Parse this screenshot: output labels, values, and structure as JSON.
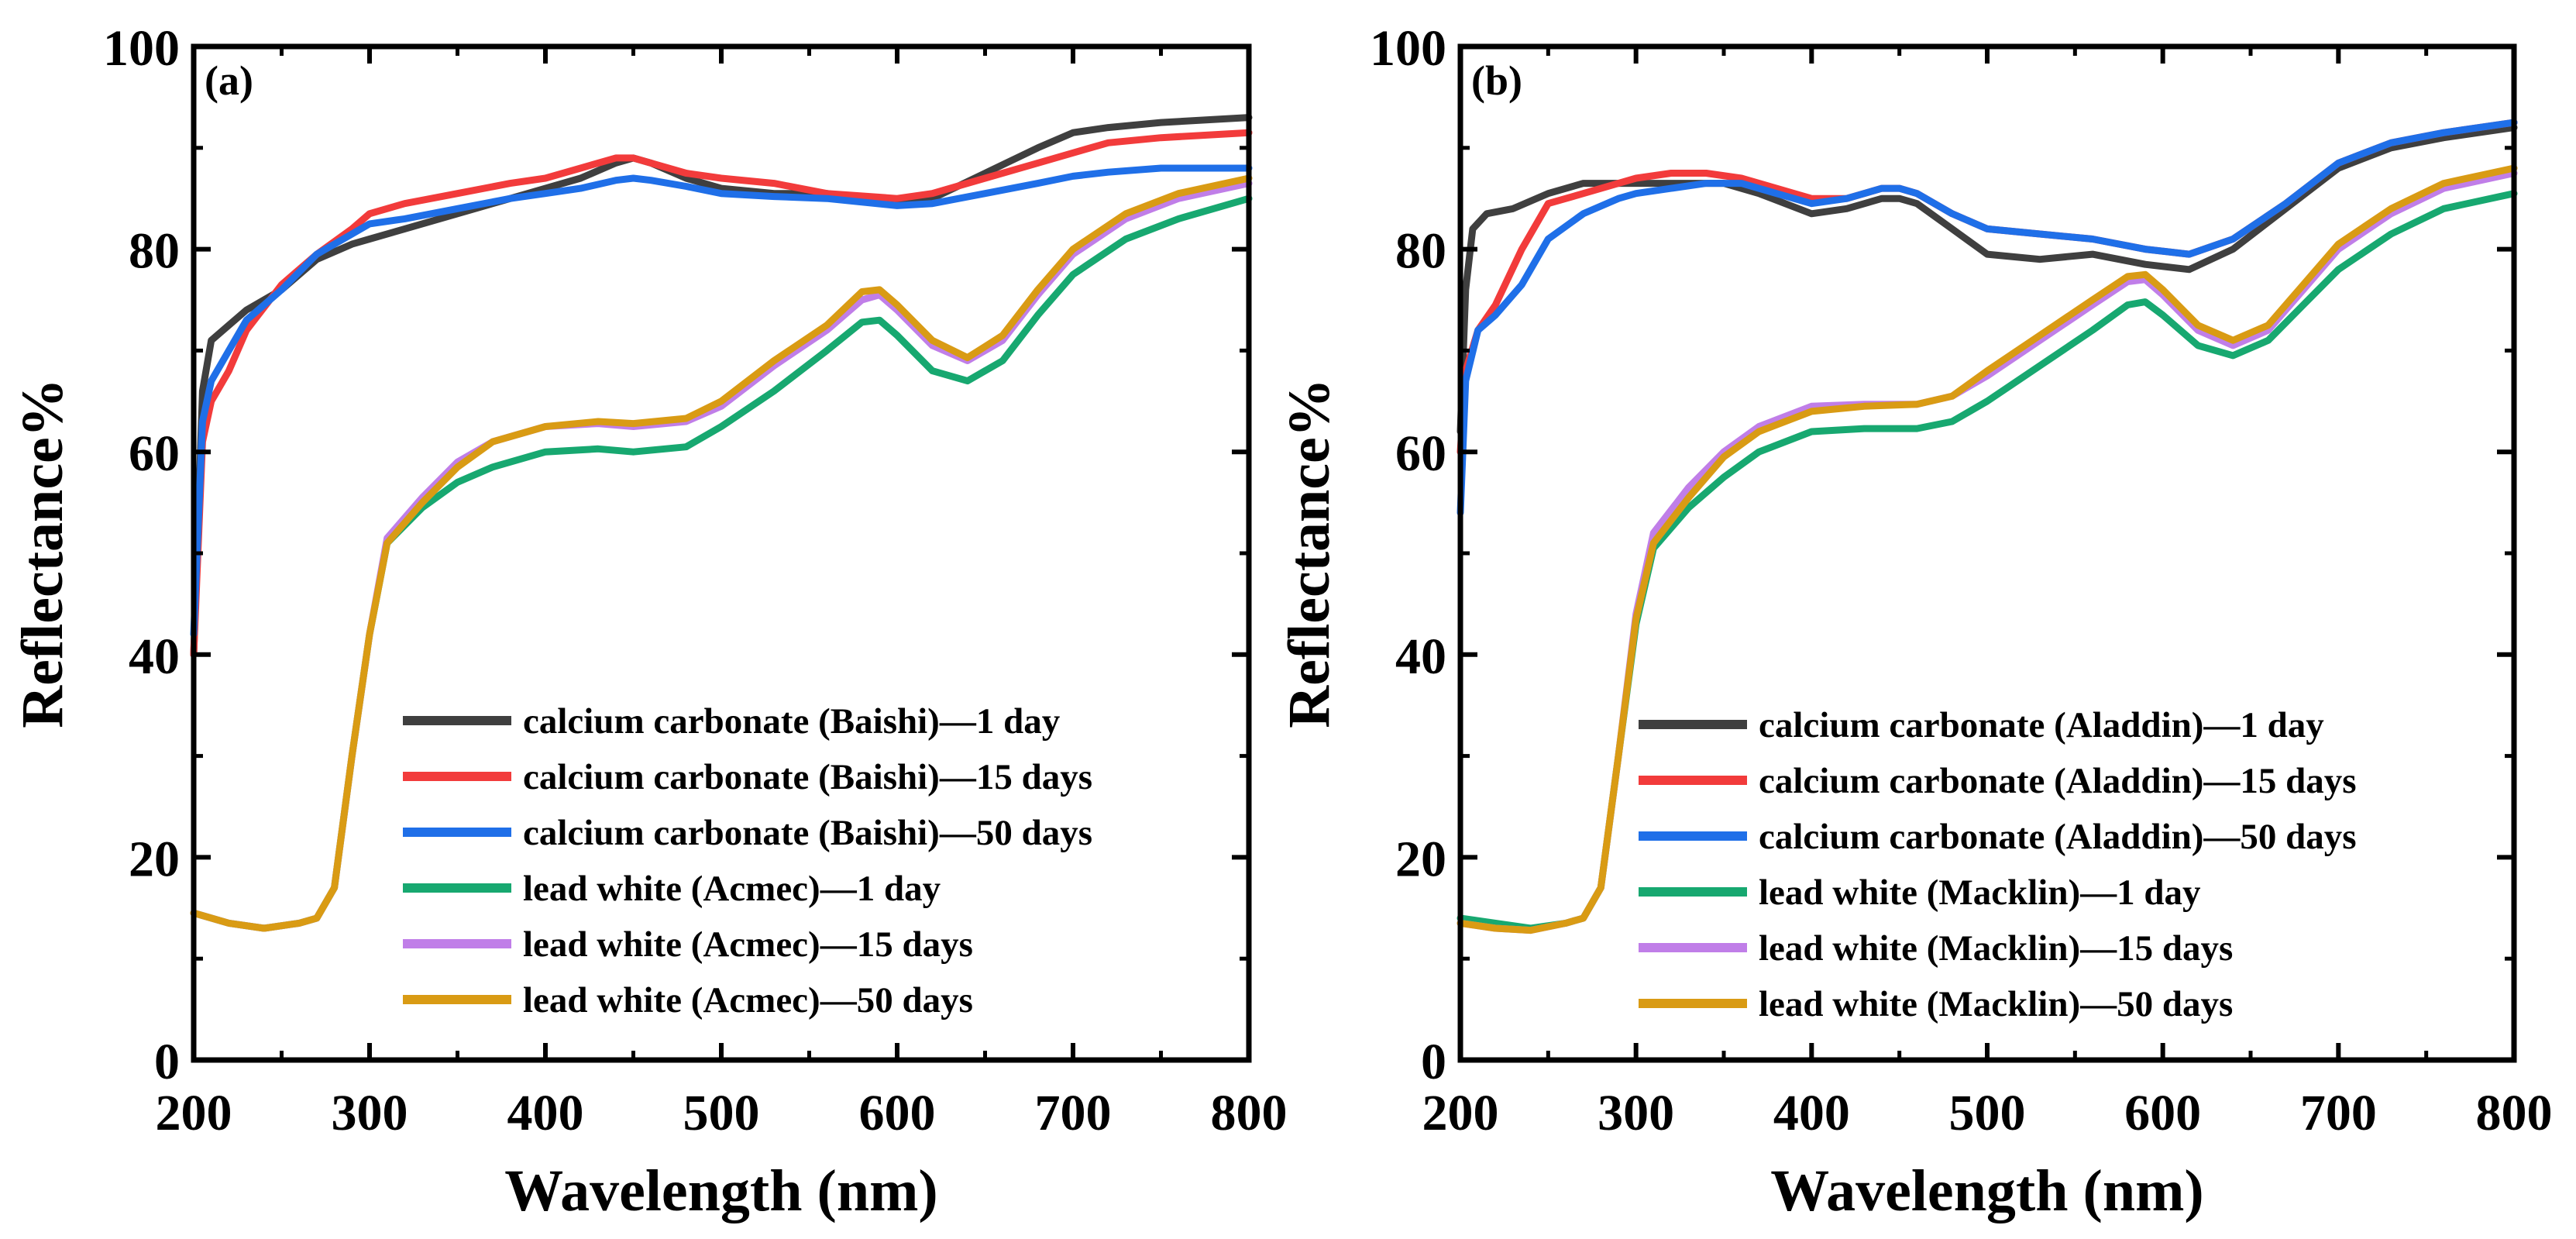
{
  "chart_data": [
    {
      "type": "line",
      "panel_label": "(a)",
      "xlabel": "Wavelength (nm)",
      "ylabel": "Reflectance%",
      "xlim": [
        200,
        800
      ],
      "ylim": [
        0,
        100
      ],
      "xticks": [
        "200",
        "300",
        "400",
        "500",
        "600",
        "700",
        "800"
      ],
      "yticks": [
        "0",
        "20",
        "40",
        "60",
        "80",
        "100"
      ],
      "legend_position": "lower-right",
      "series": [
        {
          "name": "calcium carbonate (Baishi)—1 day",
          "color": "#3f3f3f",
          "x": [
            200,
            205,
            210,
            220,
            230,
            250,
            270,
            290,
            300,
            320,
            350,
            380,
            400,
            420,
            440,
            450,
            460,
            480,
            500,
            530,
            560,
            600,
            620,
            650,
            680,
            700,
            720,
            750,
            800
          ],
          "y": [
            40,
            66,
            71,
            72.5,
            74,
            76,
            79,
            80.5,
            81,
            82,
            83.5,
            85,
            86,
            87,
            88.5,
            89,
            88.5,
            87,
            86,
            85.5,
            85.5,
            84.5,
            85,
            87.5,
            90,
            91.5,
            92,
            92.5,
            93
          ]
        },
        {
          "name": "calcium carbonate (Baishi)—15 days",
          "color": "#f23b3b",
          "x": [
            200,
            205,
            210,
            220,
            230,
            250,
            270,
            290,
            300,
            320,
            350,
            380,
            400,
            420,
            440,
            450,
            460,
            480,
            500,
            530,
            560,
            600,
            620,
            650,
            680,
            700,
            720,
            750,
            800
          ],
          "y": [
            40,
            61,
            65,
            68,
            72,
            76.5,
            79.5,
            82,
            83.5,
            84.5,
            85.5,
            86.5,
            87,
            88,
            89,
            89,
            88.5,
            87.5,
            87,
            86.5,
            85.5,
            85,
            85.5,
            87,
            88.5,
            89.5,
            90.5,
            91,
            91.5
          ]
        },
        {
          "name": "calcium carbonate (Baishi)—50 days",
          "color": "#1f6fe8",
          "x": [
            200,
            205,
            210,
            220,
            230,
            250,
            270,
            290,
            300,
            320,
            350,
            380,
            400,
            420,
            440,
            450,
            460,
            480,
            500,
            530,
            560,
            600,
            620,
            650,
            680,
            700,
            720,
            750,
            800
          ],
          "y": [
            42,
            63,
            67,
            70,
            73,
            76,
            79.5,
            81.5,
            82.5,
            83,
            84,
            85,
            85.5,
            86,
            86.8,
            87,
            86.8,
            86.2,
            85.5,
            85.2,
            85,
            84.3,
            84.5,
            85.5,
            86.5,
            87.2,
            87.6,
            88,
            88
          ]
        },
        {
          "name": "lead white (Acmec)—1 day",
          "color": "#17a870",
          "x": [
            200,
            220,
            240,
            260,
            270,
            280,
            290,
            300,
            310,
            330,
            350,
            370,
            400,
            430,
            450,
            480,
            500,
            530,
            560,
            580,
            590,
            600,
            620,
            640,
            660,
            680,
            700,
            730,
            760,
            800
          ],
          "y": [
            14.5,
            13.5,
            13,
            13.5,
            14,
            17,
            30,
            42,
            51,
            54.5,
            57,
            58.5,
            60,
            60.3,
            60,
            60.5,
            62.5,
            66,
            70,
            72.8,
            73,
            71.5,
            68,
            67,
            69,
            73.5,
            77.5,
            81,
            83,
            85
          ]
        },
        {
          "name": "lead white (Acmec)—15 days",
          "color": "#c07ee8",
          "x": [
            200,
            220,
            240,
            260,
            270,
            280,
            290,
            300,
            310,
            330,
            350,
            370,
            400,
            430,
            450,
            480,
            500,
            530,
            560,
            580,
            590,
            600,
            620,
            640,
            660,
            680,
            700,
            730,
            760,
            800
          ],
          "y": [
            14.5,
            13.5,
            13,
            13.5,
            14,
            17,
            30,
            42,
            51.5,
            55.5,
            59,
            61,
            62.5,
            62.8,
            62.5,
            63,
            64.5,
            68.5,
            72,
            75,
            75.5,
            74,
            70.5,
            69,
            71,
            75.5,
            79.5,
            83,
            85,
            86.5
          ]
        },
        {
          "name": "lead white (Acmec)—50 days",
          "color": "#d99b14",
          "x": [
            200,
            220,
            240,
            260,
            270,
            280,
            290,
            300,
            310,
            330,
            350,
            370,
            400,
            430,
            450,
            480,
            500,
            530,
            560,
            580,
            590,
            600,
            620,
            640,
            660,
            680,
            700,
            730,
            760,
            800
          ],
          "y": [
            14.5,
            13.5,
            13,
            13.5,
            14,
            17,
            30,
            42,
            51,
            55,
            58.5,
            61,
            62.5,
            63,
            62.8,
            63.3,
            65,
            69,
            72.5,
            75.8,
            76,
            74.5,
            71,
            69.3,
            71.5,
            76,
            80,
            83.5,
            85.5,
            87
          ]
        }
      ]
    },
    {
      "type": "line",
      "panel_label": "(b)",
      "xlabel": "Wavelength (nm)",
      "ylabel": "Reflectance%",
      "xlim": [
        200,
        800
      ],
      "ylim": [
        0,
        100
      ],
      "xticks": [
        "200",
        "300",
        "400",
        "500",
        "600",
        "700",
        "800"
      ],
      "yticks": [
        "0",
        "20",
        "40",
        "60",
        "80",
        "100"
      ],
      "legend_position": "lower-right",
      "series": [
        {
          "name": "calcium carbonate (Aladdin)—1 day",
          "color": "#3f3f3f",
          "x": [
            200,
            203,
            207,
            215,
            230,
            250,
            270,
            285,
            300,
            330,
            350,
            370,
            400,
            420,
            440,
            450,
            460,
            480,
            500,
            530,
            560,
            590,
            615,
            640,
            670,
            700,
            730,
            760,
            800
          ],
          "y": [
            62,
            76,
            82,
            83.5,
            84,
            85.5,
            86.5,
            86.5,
            86.5,
            86.5,
            86.5,
            85.5,
            83.5,
            84,
            85,
            85,
            84.5,
            82,
            79.5,
            79,
            79.5,
            78.5,
            78,
            80,
            84,
            88,
            90,
            91,
            92
          ]
        },
        {
          "name": "calcium carbonate (Aladdin)—15 days",
          "color": "#f23b3b",
          "x": [
            200,
            203,
            210,
            220,
            235,
            250,
            270,
            290,
            300,
            320,
            340,
            360,
            380,
            400,
            420,
            440,
            450,
            460,
            480,
            500,
            530,
            560,
            590,
            615,
            640,
            670,
            700,
            730,
            760,
            800
          ],
          "y": [
            60,
            68,
            72,
            74.5,
            80,
            84.5,
            85.5,
            86.5,
            87,
            87.5,
            87.5,
            87,
            86,
            85,
            85,
            86,
            86,
            85.5,
            83.5,
            82,
            81.5,
            81,
            80,
            79.5,
            81,
            84.5,
            88.5,
            90.5,
            91.5,
            92.5
          ]
        },
        {
          "name": "calcium carbonate (Aladdin)—50 days",
          "color": "#1f6fe8",
          "x": [
            200,
            203,
            210,
            220,
            235,
            250,
            270,
            290,
            300,
            320,
            340,
            360,
            380,
            400,
            420,
            440,
            450,
            460,
            480,
            500,
            530,
            560,
            590,
            615,
            640,
            670,
            700,
            730,
            760,
            800
          ],
          "y": [
            54,
            67,
            72,
            73.5,
            76.5,
            81,
            83.5,
            85,
            85.5,
            86,
            86.5,
            86.5,
            85.5,
            84.5,
            85,
            86,
            86,
            85.5,
            83.5,
            82,
            81.5,
            81,
            80,
            79.5,
            81,
            84.5,
            88.5,
            90.5,
            91.5,
            92.5
          ]
        },
        {
          "name": "lead white (Macklin)—1 day",
          "color": "#17a870",
          "x": [
            200,
            220,
            240,
            260,
            270,
            280,
            290,
            300,
            310,
            330,
            350,
            370,
            400,
            430,
            460,
            480,
            500,
            530,
            560,
            580,
            590,
            600,
            620,
            640,
            660,
            680,
            700,
            730,
            760,
            800
          ],
          "y": [
            14,
            13.5,
            13,
            13.5,
            14,
            17,
            30,
            43,
            50.5,
            54.5,
            57.5,
            60,
            62,
            62.3,
            62.3,
            63,
            65,
            68.5,
            72,
            74.5,
            74.8,
            73.5,
            70.5,
            69.5,
            71,
            74.5,
            78,
            81.5,
            84,
            85.5
          ]
        },
        {
          "name": "lead white (Macklin)—15 days",
          "color": "#c07ee8",
          "x": [
            200,
            220,
            240,
            260,
            270,
            280,
            290,
            300,
            310,
            330,
            350,
            370,
            400,
            430,
            460,
            480,
            500,
            530,
            560,
            580,
            590,
            600,
            620,
            640,
            660,
            680,
            700,
            730,
            760,
            800
          ],
          "y": [
            13.5,
            13,
            12.8,
            13.5,
            14,
            17,
            30,
            44,
            52,
            56.5,
            60,
            62.5,
            64.5,
            64.7,
            64.7,
            65.5,
            67.5,
            71,
            74.5,
            76.8,
            77,
            75.5,
            72,
            70.5,
            72,
            76,
            80,
            83.5,
            86,
            87.5
          ]
        },
        {
          "name": "lead white (Macklin)—50 days",
          "color": "#d99b14",
          "x": [
            200,
            220,
            240,
            260,
            270,
            280,
            290,
            300,
            310,
            330,
            350,
            370,
            400,
            430,
            460,
            480,
            500,
            530,
            560,
            580,
            590,
            600,
            620,
            640,
            660,
            680,
            700,
            730,
            760,
            800
          ],
          "y": [
            13.5,
            13,
            12.8,
            13.5,
            14,
            17,
            30,
            43.5,
            51,
            55.5,
            59.5,
            62,
            64,
            64.5,
            64.7,
            65.5,
            68,
            71.5,
            75,
            77.3,
            77.5,
            76,
            72.5,
            71,
            72.5,
            76.5,
            80.5,
            84,
            86.5,
            88
          ]
        }
      ]
    }
  ]
}
